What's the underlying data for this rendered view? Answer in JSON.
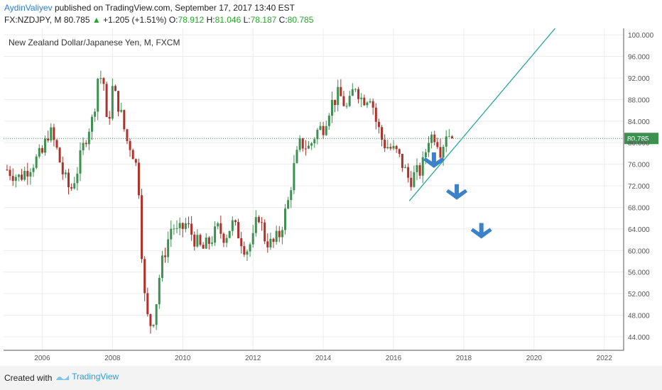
{
  "header": {
    "author": "AydinValiyev",
    "published_text": "published on TradingView.com, September 17, 2017 13:40 EST",
    "symbol": "FX:NZDJPY, M",
    "last": "80.785",
    "change": "+1.205 (+1.51%)",
    "o_label": "O:",
    "o_value": "78.912",
    "h_label": "H:",
    "h_value": "81.046",
    "l_label": "L:",
    "l_value": "78.187",
    "c_label": "C:",
    "c_value": "80.785"
  },
  "footer": {
    "created_with": "Created with",
    "brand": "TradingView"
  },
  "colors": {
    "up": "#3c9150",
    "down": "#b0302a",
    "trendline": "#26a69a",
    "arrow": "#3c82c8",
    "price_label_bg": "#3c9150",
    "grid": "#ececec"
  },
  "chart_data": {
    "type": "candlestick",
    "title": "New Zealand Dollar/Japanese Yen, M, FXCM",
    "ylim": [
      41.5,
      101.2
    ],
    "xlim": [
      2004.9,
      2022.55
    ],
    "y_ticks": [
      "44.000",
      "48.000",
      "52.000",
      "56.000",
      "60.000",
      "64.000",
      "68.000",
      "72.000",
      "76.000",
      "80.000",
      "84.000",
      "88.000",
      "92.000",
      "96.000",
      "100.000"
    ],
    "x_ticks": [
      "2006",
      "2008",
      "2010",
      "2012",
      "2014",
      "2016",
      "2018",
      "2020",
      "2022"
    ],
    "current_price": "80.785",
    "current_price_value": 80.785,
    "trendline": {
      "start": [
        2016.45,
        69.2
      ],
      "end": [
        2020.6,
        101.2
      ]
    },
    "arrows": [
      {
        "x": 2017.15,
        "y": 76.5
      },
      {
        "x": 2017.8,
        "y": 70.6
      },
      {
        "x": 2018.5,
        "y": 63.4
      }
    ],
    "anchors": [
      [
        2005.0,
        75.0
      ],
      [
        2005.35,
        73.5
      ],
      [
        2005.7,
        76.0
      ],
      [
        2006.0,
        78.0
      ],
      [
        2006.2,
        82.5
      ],
      [
        2006.4,
        79.0
      ],
      [
        2006.6,
        74.0
      ],
      [
        2006.8,
        71.0
      ],
      [
        2007.0,
        75.0
      ],
      [
        2007.3,
        82.5
      ],
      [
        2007.45,
        84.5
      ],
      [
        2007.6,
        93.0
      ],
      [
        2007.75,
        91.0
      ],
      [
        2007.85,
        82.0
      ],
      [
        2008.0,
        90.0
      ],
      [
        2008.2,
        86.5
      ],
      [
        2008.4,
        80.5
      ],
      [
        2008.55,
        79.0
      ],
      [
        2008.7,
        75.0
      ],
      [
        2008.8,
        68.0
      ],
      [
        2008.85,
        56.0
      ],
      [
        2008.95,
        49.0
      ],
      [
        2009.05,
        46.0
      ],
      [
        2009.2,
        48.0
      ],
      [
        2009.35,
        56.0
      ],
      [
        2009.5,
        60.0
      ],
      [
        2009.7,
        65.0
      ],
      [
        2009.85,
        63.0
      ],
      [
        2010.1,
        65.0
      ],
      [
        2010.3,
        62.5
      ],
      [
        2010.55,
        60.0
      ],
      [
        2010.8,
        62.0
      ],
      [
        2011.0,
        64.0
      ],
      [
        2011.2,
        62.5
      ],
      [
        2011.4,
        65.0
      ],
      [
        2011.6,
        63.0
      ],
      [
        2011.8,
        60.0
      ],
      [
        2012.0,
        62.0
      ],
      [
        2012.15,
        67.0
      ],
      [
        2012.35,
        62.0
      ],
      [
        2012.55,
        61.0
      ],
      [
        2012.75,
        63.0
      ],
      [
        2013.0,
        69.0
      ],
      [
        2013.15,
        75.0
      ],
      [
        2013.35,
        80.0
      ],
      [
        2013.6,
        79.0
      ],
      [
        2013.8,
        82.0
      ],
      [
        2014.0,
        83.0
      ],
      [
        2014.2,
        87.0
      ],
      [
        2014.45,
        89.0
      ],
      [
        2014.7,
        86.0
      ],
      [
        2014.9,
        91.0
      ],
      [
        2015.1,
        88.0
      ],
      [
        2015.35,
        89.0
      ],
      [
        2015.5,
        84.0
      ],
      [
        2015.7,
        80.0
      ],
      [
        2015.9,
        79.0
      ],
      [
        2016.1,
        78.0
      ],
      [
        2016.25,
        76.0
      ],
      [
        2016.45,
        73.0
      ],
      [
        2016.6,
        74.0
      ],
      [
        2016.8,
        75.0
      ],
      [
        2017.0,
        81.0
      ],
      [
        2017.2,
        81.5
      ],
      [
        2017.35,
        78.5
      ],
      [
        2017.5,
        82.0
      ],
      [
        2017.7,
        80.8
      ]
    ]
  }
}
